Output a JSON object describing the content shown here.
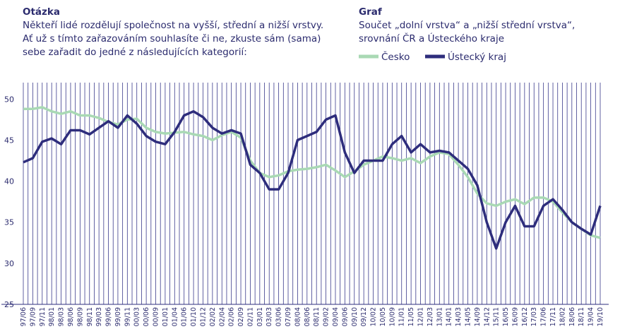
{
  "question": {
    "heading": "Otázka",
    "lines": [
      "Někteří lidé rozdělují společnost na vyšší, střední a nižší vrstvy.",
      "Ať už s tímto zařazováním souhlasíte či ne, zkuste sám (sama)",
      "sebe zařadit do jedné z následujících kategorií:"
    ]
  },
  "chart_data": {
    "type": "line",
    "title": "Graf",
    "subtitle": [
      "Součet „dolní vrstva“ a „nižší střední vrstva“,",
      "srovnání ČR a Ústeckého kraje"
    ],
    "categories": [
      "97/06",
      "97/09",
      "97/11",
      "98/01",
      "98/03",
      "98/06",
      "98/09",
      "98/11",
      "99/03",
      "99/06",
      "99/09",
      "99/11",
      "00/03",
      "00/06",
      "00/09",
      "01/01",
      "01/04",
      "01/06",
      "01/10",
      "01/12",
      "02/02",
      "02/04",
      "02/06",
      "02/09",
      "02/11",
      "03/01",
      "03/03",
      "03/06",
      "07/09",
      "08/04",
      "08/06",
      "08/11",
      "09/02",
      "09/04",
      "09/06",
      "09/10",
      "09/12",
      "10/02",
      "10/05",
      "10/09",
      "11/01",
      "11/05",
      "12/01",
      "12/03",
      "13/01",
      "14/01",
      "14/03",
      "14/05",
      "14/09",
      "14/12",
      "15/11",
      "16/05",
      "16/09",
      "16/12",
      "17/03",
      "17/06",
      "17/11",
      "18/02",
      "18/06",
      "18/11",
      "19/04",
      "19/10"
    ],
    "series": [
      {
        "name": "Česko",
        "color": "#a9d9b4",
        "values": [
          48.8,
          48.8,
          49.0,
          48.5,
          48.2,
          48.5,
          48.0,
          48.0,
          47.7,
          47.2,
          46.9,
          47.5,
          47.6,
          46.5,
          46.0,
          45.8,
          45.9,
          46.0,
          45.7,
          45.5,
          45.0,
          45.6,
          46.0,
          45.3,
          42.5,
          41.0,
          40.5,
          40.7,
          41.2,
          41.4,
          41.5,
          41.7,
          42.0,
          41.3,
          40.5,
          41.2,
          42.0,
          42.5,
          43.0,
          42.8,
          42.5,
          42.8,
          42.2,
          43.0,
          43.5,
          43.3,
          42.0,
          40.5,
          38.5,
          37.3,
          37.0,
          37.5,
          37.8,
          37.2,
          38.0,
          38.0,
          37.5,
          36.2,
          35.0,
          34.2,
          33.4,
          33.1
        ]
      },
      {
        "name": "Ústecký kraj",
        "color": "#2e2d7c",
        "values": [
          42.3,
          42.8,
          44.8,
          45.2,
          44.5,
          46.2,
          46.2,
          45.7,
          46.5,
          47.3,
          46.5,
          48.0,
          47.0,
          45.5,
          44.8,
          44.5,
          46.0,
          48.0,
          48.5,
          47.8,
          46.5,
          45.8,
          46.2,
          45.8,
          42.0,
          41.0,
          39.0,
          39.0,
          41.0,
          45.0,
          45.5,
          46.0,
          47.5,
          48.0,
          43.5,
          41.0,
          42.5,
          42.5,
          42.5,
          44.5,
          45.5,
          43.5,
          44.5,
          43.5,
          43.7,
          43.5,
          42.5,
          41.5,
          39.5,
          35.0,
          31.8,
          35.0,
          37.0,
          34.5,
          34.5,
          37.0,
          37.8,
          36.5,
          35.0,
          34.2,
          33.5,
          37.0
        ]
      }
    ],
    "ylim": [
      25,
      52
    ],
    "yticks": [
      25,
      30,
      35,
      40,
      45,
      50
    ]
  }
}
